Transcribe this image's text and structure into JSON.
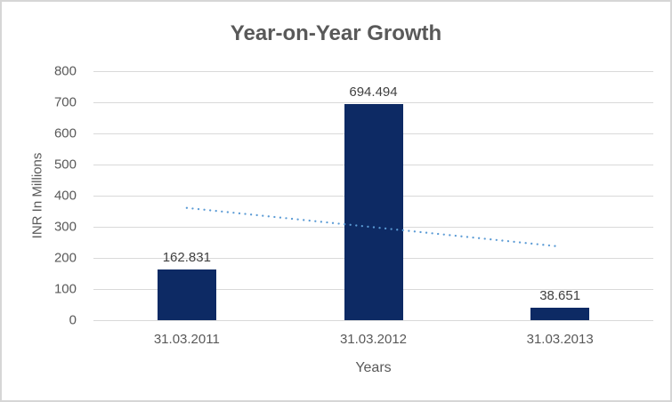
{
  "chart_data": {
    "type": "bar",
    "title": "Year-on-Year Growth",
    "xlabel": "Years",
    "ylabel": "INR In Millions",
    "categories": [
      "31.03.2011",
      "31.03.2012",
      "31.03.2013"
    ],
    "values": [
      162.831,
      694.494,
      38.651
    ],
    "data_labels": [
      "162.831",
      "694.494",
      "38.651"
    ],
    "ylim": [
      0,
      800
    ],
    "yticks": [
      0,
      100,
      200,
      300,
      400,
      500,
      600,
      700,
      800
    ],
    "grid": true,
    "legend": "none",
    "trendline": {
      "type": "linear",
      "style": "dotted",
      "start_value": 360.75,
      "end_value": 236.57,
      "color": "#5B9BD5"
    },
    "colors": {
      "bar": "#0d2a64",
      "trendline": "#5B9BD5",
      "gridline": "#d9d9d9",
      "axis_text": "#595959",
      "data_label_text": "#404040",
      "title_text": "#595959",
      "border": "#d6d6d6",
      "background": "#ffffff"
    }
  }
}
